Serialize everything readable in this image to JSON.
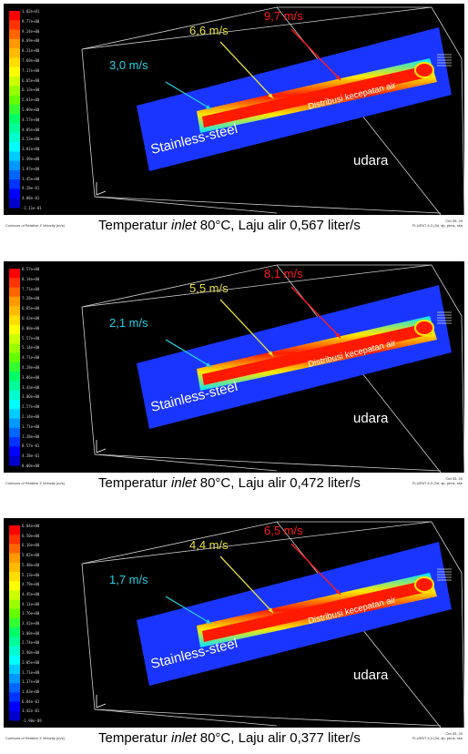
{
  "colors": {
    "background": "#000000",
    "domain": "#1a35ff",
    "jet_core": "#ff1a00",
    "jet_edge": "#ffe600",
    "label_min": "#22d3e6",
    "label_mid": "#e6e23a",
    "label_max": "#ff1a1a",
    "wire": "#cfcfcf"
  },
  "colorbar_colors": [
    "#ff0000",
    "#ff3300",
    "#ff6600",
    "#ff9900",
    "#ffbb00",
    "#ffdd00",
    "#ffff00",
    "#ccff00",
    "#99ff00",
    "#66ff00",
    "#33ff33",
    "#00ff66",
    "#00ff99",
    "#00ffcc",
    "#00ffff",
    "#00ccff",
    "#0099ff",
    "#0066ff",
    "#0033ff",
    "#0000ff",
    "#0000cc"
  ],
  "panels": [
    {
      "colorbar_labels": [
        "1.02e+01",
        "9.77e+00",
        "9.24e+00",
        "8.69e+00",
        "8.21e+00",
        "7.69e+00",
        "7.17e+00",
        "6.65e+00",
        "6.13e+00",
        "5.61e+00",
        "5.09e+00",
        "4.57e+00",
        "4.05e+00",
        "3.53e+00",
        "3.01e+00",
        "2.49e+00",
        "1.97e+00",
        "1.45e+00",
        "9.28e-01",
        "4.08e-01",
        "-1.11e-01"
      ],
      "label_min": "3,0 m/s",
      "label_mid": "6,6 m/s",
      "label_max": "9,7 m/s",
      "label_material": "Stainless-steel",
      "label_distribution": "Distribusi kecepatan air",
      "label_medium": "udara",
      "caption_left": "Contours of Relative Z Velocity (m/s)",
      "caption_prefix": "Temperatur ",
      "caption_italic": "inlet",
      "caption_suffix": " 80°C, Laju alir 0,567 liter/s",
      "caption_right_1": "Oct 05, 20",
      "caption_right_2": "FLUENT 6.3 (3d, dp, pbns, ske"
    },
    {
      "colorbar_labels": [
        "8.57e+00",
        "8.14e+00",
        "7.71e+00",
        "7.28e+00",
        "6.85e+00",
        "6.43e+00",
        "6.00e+00",
        "5.57e+00",
        "5.14e+00",
        "4.71e+00",
        "4.28e+00",
        "3.86e+00",
        "3.43e+00",
        "3.00e+00",
        "2.57e+00",
        "2.14e+00",
        "1.71e+00",
        "1.28e+00",
        "8.57e-01",
        "4.28e-01",
        "0.00e+00"
      ],
      "label_min": "2,1 m/s",
      "label_mid": "5,5 m/s",
      "label_max": "8,1 m/s",
      "label_material": "Stainless-steel",
      "label_distribution": "Distribusi kecepatan air",
      "label_medium": "udara",
      "caption_left": "Contours of Relative Z Velocity (m/s)",
      "caption_prefix": "Temperatur ",
      "caption_italic": "inlet",
      "caption_suffix": " 80°C, Laju alir 0,472 liter/s",
      "caption_right_1": "Oct 05, 20",
      "caption_right_2": "FLUENT 6.3 (3d, dp, pbns, ske"
    },
    {
      "colorbar_labels": [
        "6.84e+00",
        "6.50e+00",
        "6.16e+00",
        "5.82e+00",
        "5.48e+00",
        "5.13e+00",
        "4.79e+00",
        "4.45e+00",
        "4.11e+00",
        "3.76e+00",
        "3.42e+00",
        "3.08e+00",
        "2.74e+00",
        "2.40e+00",
        "2.05e+00",
        "1.71e+00",
        "1.37e+00",
        "1.03e+00",
        "6.84e-01",
        "3.42e-01",
        "-1.90e-09"
      ],
      "label_min": "1,7 m/s",
      "label_mid": "4,4 m/s",
      "label_max": "6,5 m/s",
      "label_material": "Stainless-steel",
      "label_distribution": "Distribusi kecepatan air",
      "label_medium": "udara",
      "caption_left": "Contours of Relative Z Velocity (m/s)",
      "caption_prefix": "Temperatur ",
      "caption_italic": "inlet",
      "caption_suffix": " 80°C, Laju alir 0,377 liter/s",
      "caption_right_1": "Oct 05, 20",
      "caption_right_2": "FLUENT 6.3 (3d, dp, pbns, ske"
    }
  ]
}
